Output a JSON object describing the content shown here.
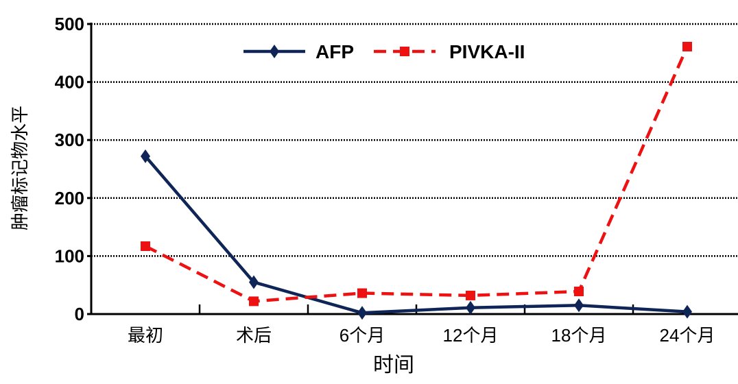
{
  "chart_data": {
    "type": "line",
    "title": "",
    "xlabel": "时间",
    "ylabel": "肿瘤标记物水平",
    "categories": [
      "最初",
      "术后",
      "6个月",
      "12个月",
      "18个月",
      "24个月"
    ],
    "ylim": [
      0,
      500
    ],
    "yticks": [
      "0",
      "100",
      "200",
      "300",
      "400",
      "500"
    ],
    "grid": "horizontal dotted",
    "legend": "top",
    "series": [
      {
        "name": "AFP",
        "color": "#0f2557",
        "style": "solid",
        "marker": "diamond",
        "values": [
          272,
          55,
          2,
          11,
          15,
          4
        ]
      },
      {
        "name": "PIVKA-II",
        "color": "#ee1111",
        "style": "dashed",
        "marker": "square",
        "values": [
          117,
          22,
          36,
          32,
          39,
          461
        ]
      }
    ]
  }
}
